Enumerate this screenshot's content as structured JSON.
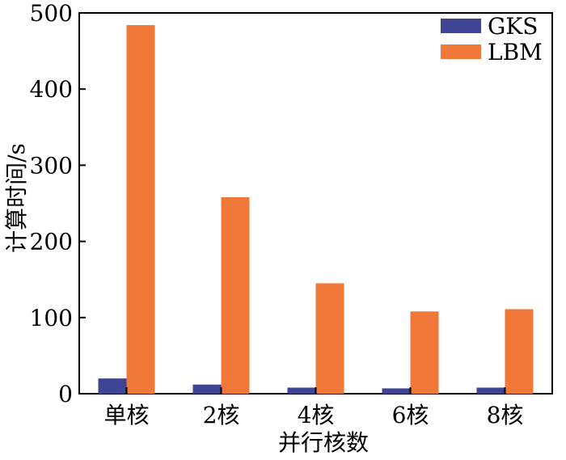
{
  "chart_data": {
    "type": "bar",
    "title": "",
    "xlabel": "并行核数",
    "ylabel": "计算时间/s",
    "categories": [
      "单核",
      "2核",
      "4核",
      "6核",
      "8核"
    ],
    "ylim": [
      0,
      500
    ],
    "yticks": [
      "0",
      "100",
      "200",
      "300",
      "400",
      "500"
    ],
    "series": [
      {
        "name": "GKS",
        "color": "#3f4494",
        "values": [
          20,
          12,
          8,
          7,
          8
        ]
      },
      {
        "name": "LBM",
        "color": "#f0793a",
        "values": [
          484,
          258,
          145,
          108,
          111
        ]
      }
    ],
    "legend_position": "top-right",
    "grid": false
  }
}
